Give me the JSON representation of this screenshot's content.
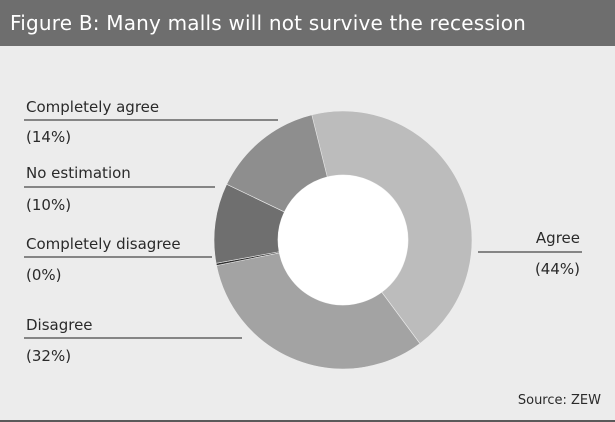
{
  "figure": {
    "title": "Figure B: Many malls will not survive the recession",
    "source": "Source: ZEW"
  },
  "chart_data": {
    "type": "pie",
    "title": "Figure B: Many malls will not survive the recession",
    "donut": true,
    "categories": [
      "Agree",
      "Disagree",
      "Completely disagree",
      "No estimation",
      "Completely agree"
    ],
    "values": [
      44,
      32,
      0,
      10,
      14
    ],
    "value_labels": [
      "(44%)",
      "(32%)",
      "(0%)",
      "(10%)",
      "(14%)"
    ],
    "colors": [
      "#bcbcbc",
      "#a3a3a3",
      "#2f2f2f",
      "#6f6f6f",
      "#8e8e8e"
    ],
    "legend": "callout-labels"
  }
}
